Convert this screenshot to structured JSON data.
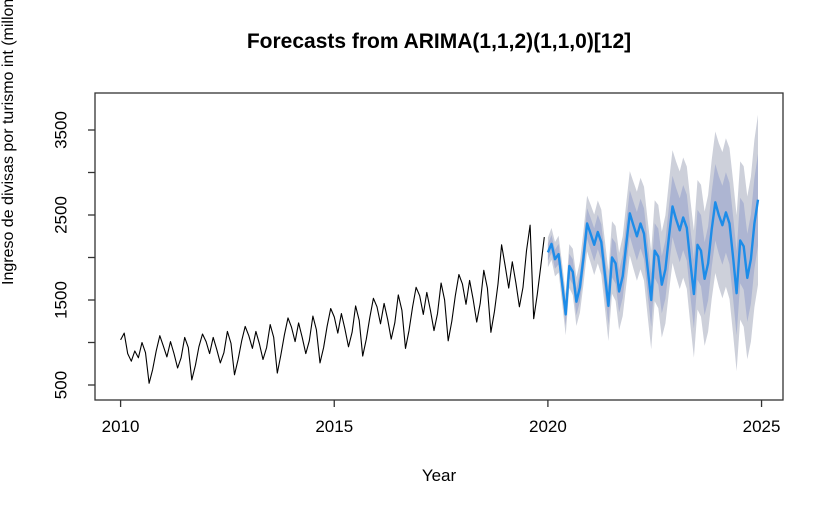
{
  "title": "Forecasts from ARIMA(1,1,2)(1,1,0)[12]",
  "x_axis": {
    "label": "Year",
    "ticks": [
      2010,
      2015,
      2020,
      2025
    ],
    "range": [
      2009.4,
      2025.5
    ]
  },
  "y_axis": {
    "label": "Ingreso de divisas por turismo int (millones $))",
    "tick_values": [
      500,
      1000,
      1500,
      2000,
      2500,
      3000,
      3500
    ],
    "labeled_ticks": [
      500,
      1500,
      2500,
      3500
    ],
    "range": [
      320,
      3940
    ]
  },
  "colors": {
    "observed_line": "#000000",
    "forecast_line": "#1d8ce8",
    "band_80": "#a9b0d0",
    "band_95": "#cdd0da",
    "box": "#333333",
    "background": "#ffffff"
  },
  "chart_data": {
    "type": "line",
    "title": "Forecasts from ARIMA(1,1,2)(1,1,0)[12]",
    "xlabel": "Year",
    "ylabel": "Ingreso de divisas por turismo int (millones $))",
    "x_ticks": [
      2010,
      2015,
      2020,
      2025
    ],
    "y_ticks_labeled": [
      500,
      1500,
      2500,
      3500
    ],
    "ylim": [
      320,
      3940
    ],
    "xlim": [
      2009.4,
      2025.5
    ],
    "grid": false,
    "legend": false,
    "frequency": 12,
    "observed": {
      "name": "observed series",
      "start_year": 2010,
      "values": [
        1030,
        1110,
        870,
        780,
        900,
        820,
        1000,
        880,
        520,
        680,
        900,
        1080,
        960,
        830,
        1010,
        870,
        700,
        820,
        1060,
        940,
        560,
        730,
        950,
        1100,
        1010,
        870,
        1060,
        920,
        760,
        880,
        1130,
        990,
        620,
        800,
        1020,
        1190,
        1080,
        930,
        1130,
        980,
        800,
        940,
        1210,
        1060,
        640,
        850,
        1090,
        1290,
        1180,
        1010,
        1230,
        1060,
        870,
        1020,
        1310,
        1150,
        760,
        940,
        1190,
        1400,
        1300,
        1110,
        1340,
        1160,
        950,
        1120,
        1430,
        1260,
        840,
        1040,
        1300,
        1520,
        1420,
        1220,
        1460,
        1270,
        1040,
        1230,
        1560,
        1380,
        930,
        1140,
        1420,
        1650,
        1550,
        1330,
        1590,
        1380,
        1140,
        1340,
        1700,
        1500,
        1020,
        1250,
        1550,
        1800,
        1690,
        1450,
        1730,
        1510,
        1240,
        1460,
        1850,
        1640,
        1120,
        1370,
        1690,
        2150,
        1900,
        1640,
        1950,
        1700,
        1420,
        1650,
        2080,
        2380,
        1280,
        1560,
        1900,
        2240
      ]
    },
    "forecast": {
      "name": "forecast mean",
      "start_year": 2020,
      "mean": [
        2060,
        2160,
        1980,
        2040,
        1700,
        1330,
        1900,
        1830,
        1480,
        1650,
        2000,
        2400,
        2280,
        2150,
        2300,
        2180,
        1800,
        1430,
        2000,
        1930,
        1600,
        1780,
        2150,
        2520,
        2380,
        2250,
        2400,
        2280,
        1880,
        1500,
        2080,
        2010,
        1680,
        1860,
        2250,
        2600,
        2450,
        2320,
        2470,
        2350,
        1950,
        1570,
        2150,
        2080,
        1750,
        1930,
        2330,
        2650,
        2500,
        2380,
        2530,
        2400,
        2000,
        1580,
        2200,
        2130,
        1760,
        1980,
        2400,
        2680
      ],
      "interval_halfwidth_80": [
        97.5,
        105,
        112.5,
        120,
        127.5,
        135,
        142.5,
        150,
        157.5,
        165,
        172.5,
        180,
        187.5,
        195,
        202.5,
        210,
        217.5,
        225,
        232.5,
        240,
        247.5,
        255,
        262.5,
        270,
        277.5,
        285,
        292.5,
        300,
        307.5,
        315,
        322.5,
        330,
        337.5,
        345,
        352.5,
        360,
        367.5,
        375,
        382.5,
        390,
        397.5,
        405,
        412.5,
        420,
        427.5,
        435,
        442.5,
        450,
        457.5,
        465,
        472.5,
        480,
        487.5,
        495,
        502.5,
        510,
        517.5,
        525,
        532.5,
        540
      ],
      "interval_halfwidth_95": [
        174,
        188,
        202,
        216,
        230,
        244,
        258,
        272,
        286,
        300,
        314,
        328,
        342,
        356,
        370,
        384,
        398,
        412,
        426,
        440,
        454,
        468,
        482,
        496,
        510,
        524,
        538,
        552,
        566,
        580,
        594,
        608,
        622,
        636,
        650,
        664,
        678,
        692,
        706,
        720,
        734,
        748,
        762,
        776,
        790,
        804,
        818,
        832,
        846,
        860,
        874,
        888,
        902,
        916,
        930,
        944,
        958,
        972,
        986,
        1000
      ],
      "levels": [
        80,
        95
      ]
    }
  }
}
